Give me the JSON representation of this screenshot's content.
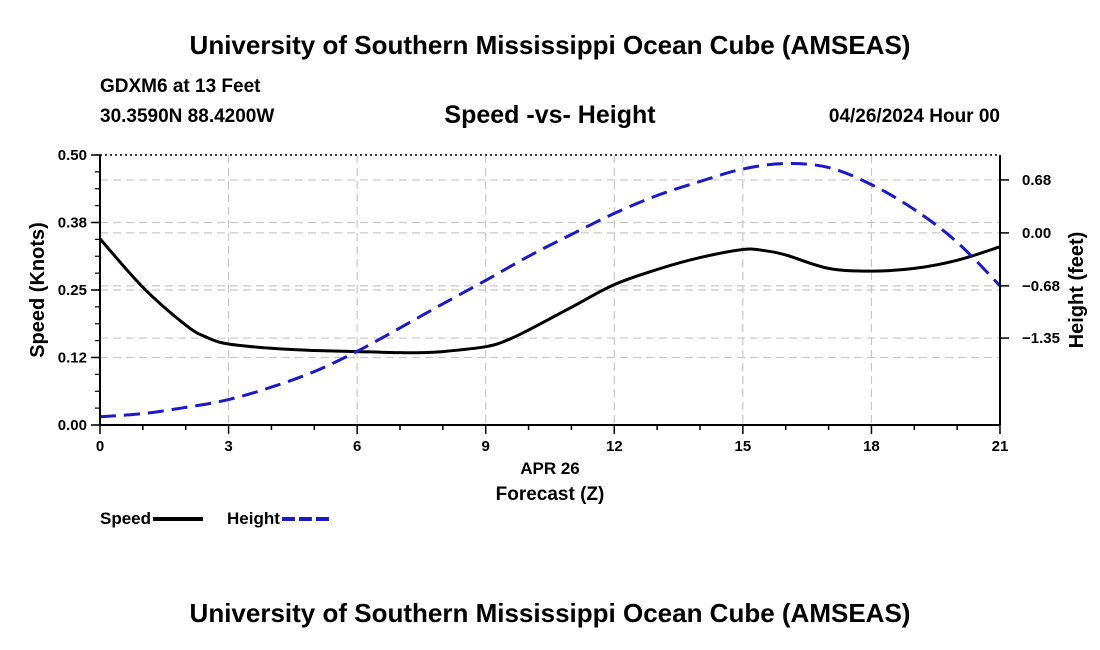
{
  "header": {
    "title": "University of Southern Mississippi Ocean Cube (AMSEAS)",
    "station": "GDXM6 at 13 Feet",
    "coords": "30.3590N  88.4200W",
    "subtitle": "Speed -vs- Height",
    "datetime": "04/26/2024 Hour 00"
  },
  "footer": {
    "title": "University of Southern Mississippi Ocean Cube (AMSEAS)"
  },
  "chart_data": {
    "type": "line",
    "title": "Speed -vs- Height",
    "xlabel": "Forecast (Z)",
    "date_label": "APR 26",
    "ylabel_left": "Speed (Knots)",
    "ylabel_right": "Height (feet)",
    "xlim": [
      0,
      21
    ],
    "ylim_left": [
      0,
      0.5
    ],
    "ylim_right": [
      -2.466,
      1.0
    ],
    "x_ticks": [
      0,
      3,
      6,
      9,
      12,
      15,
      18,
      21
    ],
    "y_left_ticks": [
      {
        "value": 0.0,
        "label": "0.00"
      },
      {
        "value": 0.125,
        "label": "0.12"
      },
      {
        "value": 0.25,
        "label": "0.25"
      },
      {
        "value": 0.375,
        "label": "0.38"
      },
      {
        "value": 0.5,
        "label": "0.50"
      }
    ],
    "y_right_ticks": [
      {
        "value": 0.68,
        "label": "0.68"
      },
      {
        "value": 0.0,
        "label": "0.00"
      },
      {
        "value": -0.68,
        "label": "−0.68"
      },
      {
        "value": -1.35,
        "label": "−1.35"
      }
    ],
    "grid": true,
    "series": [
      {
        "name": "Speed",
        "axis": "left",
        "color": "#000000",
        "style": "solid",
        "x": [
          0,
          1,
          2,
          2.5,
          3,
          4,
          5,
          6,
          7,
          7.5,
          8,
          9,
          9.5,
          10,
          11,
          12,
          13,
          14,
          15,
          15.5,
          16,
          17,
          18,
          19,
          20,
          21
        ],
        "values": [
          0.345,
          0.255,
          0.185,
          0.162,
          0.15,
          0.142,
          0.138,
          0.136,
          0.134,
          0.134,
          0.136,
          0.145,
          0.157,
          0.176,
          0.218,
          0.26,
          0.288,
          0.31,
          0.325,
          0.323,
          0.315,
          0.29,
          0.285,
          0.29,
          0.305,
          0.33
        ]
      },
      {
        "name": "Height",
        "axis": "right",
        "color": "#1a1acc",
        "style": "dashed",
        "x": [
          0,
          1,
          2,
          3,
          4,
          5,
          6,
          7,
          8,
          9,
          10,
          11,
          12,
          13,
          14,
          15,
          16,
          17,
          18,
          19,
          20,
          21
        ],
        "values": [
          -2.36,
          -2.32,
          -2.24,
          -2.14,
          -1.98,
          -1.78,
          -1.52,
          -1.22,
          -0.91,
          -0.61,
          -0.3,
          -0.02,
          0.25,
          0.48,
          0.66,
          0.82,
          0.89,
          0.84,
          0.62,
          0.3,
          -0.12,
          -0.68
        ]
      }
    ],
    "legend": {
      "position": "bottom-left",
      "entries": [
        {
          "label": "Speed",
          "color": "#000000",
          "style": "solid"
        },
        {
          "label": "Height",
          "color": "#1a1acc",
          "style": "dashed"
        }
      ]
    }
  }
}
